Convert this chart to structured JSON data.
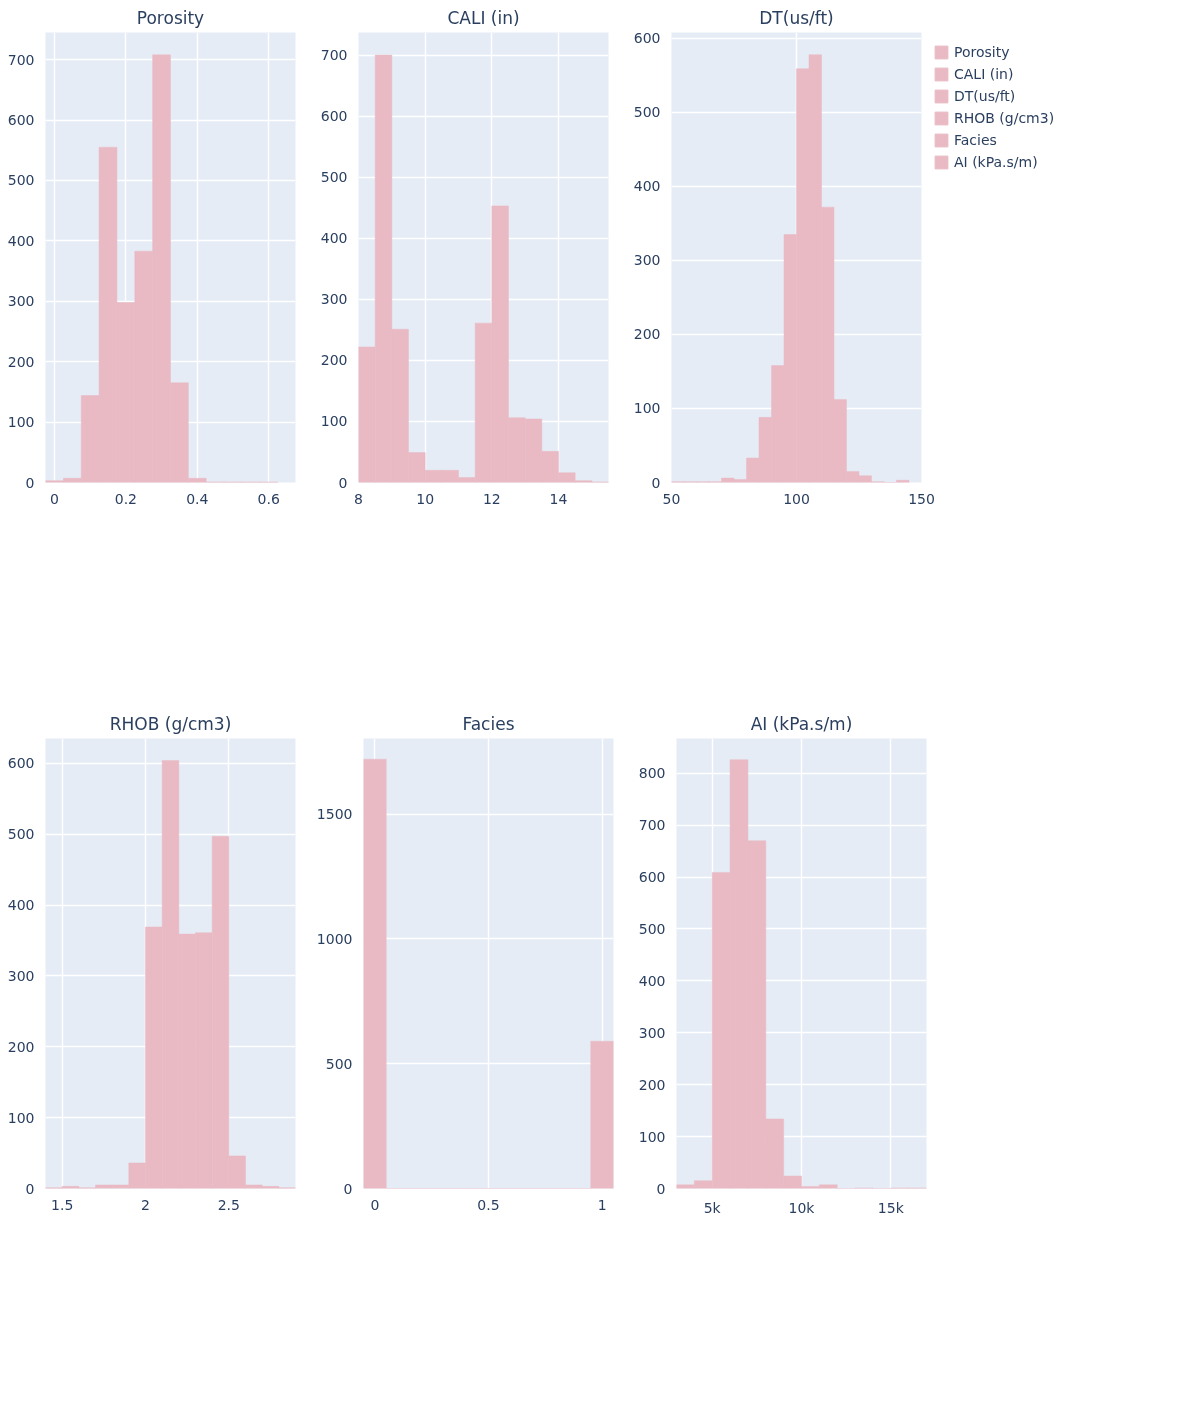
{
  "chart_data": [
    {
      "type": "histogram",
      "title": "Porosity",
      "bins": [
        -0.025,
        0.025,
        0.075,
        0.125,
        0.175,
        0.225,
        0.275,
        0.325,
        0.375,
        0.425,
        0.475,
        0.525,
        0.575,
        0.625
      ],
      "series": [
        {
          "name": "Porosity",
          "color": "#e9bac4",
          "values": [
            3,
            7,
            144,
            555,
            298,
            383,
            708,
            165,
            7,
            1,
            1,
            1,
            1
          ]
        }
      ],
      "xlim": [
        -0.025,
        0.675
      ],
      "ylim": [
        0,
        745
      ],
      "xticks": [
        0,
        0.2,
        0.4,
        0.6
      ],
      "yticks": [
        0,
        100,
        200,
        300,
        400,
        500,
        600,
        700
      ],
      "grid": true
    },
    {
      "type": "histogram",
      "title": "CALI (in)",
      "bins": [
        8,
        8.5,
        9,
        9.5,
        10,
        10.5,
        11,
        11.5,
        12,
        12.5,
        13,
        13.5,
        14,
        14.5,
        15,
        15.5
      ],
      "series": [
        {
          "name": "CALI (in)",
          "color": "#e9bac4",
          "values": [
            222,
            700,
            251,
            49,
            20,
            20,
            8,
            261,
            453,
            106,
            104,
            51,
            16,
            3,
            1
          ]
        }
      ],
      "xlim": [
        8,
        15.5
      ],
      "ylim": [
        0,
        737
      ],
      "xticks": [
        8,
        10,
        12,
        14
      ],
      "yticks": [
        0,
        100,
        200,
        300,
        400,
        500,
        600,
        700
      ],
      "grid": true
    },
    {
      "type": "histogram",
      "title": "DT(us/ft)",
      "bins": [
        50,
        55,
        60,
        65,
        70,
        75,
        80,
        85,
        90,
        95,
        100,
        105,
        110,
        115,
        120,
        125,
        130,
        135,
        140,
        145
      ],
      "series": [
        {
          "name": "DT(us/ft)",
          "color": "#e9bac4",
          "values": [
            1,
            1,
            1,
            1,
            6,
            4,
            33,
            88,
            158,
            335,
            559,
            578,
            372,
            112,
            15,
            9,
            1,
            0,
            3
          ]
        }
      ],
      "xlim": [
        50,
        150
      ],
      "ylim": [
        0,
        608
      ],
      "xticks": [
        50,
        100,
        150
      ],
      "yticks": [
        0,
        100,
        200,
        300,
        400,
        500,
        600
      ],
      "grid": true,
      "legend": "right"
    },
    {
      "type": "histogram",
      "title": "RHOB (g/cm3)",
      "bins": [
        1.4,
        1.5,
        1.6,
        1.7,
        1.8,
        1.9,
        2.0,
        2.1,
        2.2,
        2.3,
        2.4,
        2.5,
        2.6,
        2.7,
        2.8,
        2.9
      ],
      "series": [
        {
          "name": "RHOB (g/cm3)",
          "color": "#e9bac4",
          "values": [
            1,
            3,
            1,
            5,
            5,
            36,
            369,
            604,
            359,
            361,
            497,
            46,
            5,
            3,
            1
          ]
        }
      ],
      "xlim": [
        1.4,
        2.9
      ],
      "ylim": [
        0,
        635
      ],
      "xticks": [
        1.5,
        2,
        2.5
      ],
      "yticks": [
        0,
        100,
        200,
        300,
        400,
        500,
        600
      ],
      "grid": true
    },
    {
      "type": "histogram",
      "title": "Facies",
      "bins": [
        -0.05,
        0.05,
        0.15,
        0.25,
        0.35,
        0.45,
        0.55,
        0.65,
        0.75,
        0.85,
        0.95,
        1.05
      ],
      "series": [
        {
          "name": "Facies",
          "color": "#e9bac4",
          "values": [
            1720,
            0,
            0,
            0,
            0,
            0,
            0,
            0,
            0,
            0,
            590
          ]
        }
      ],
      "xlim": [
        -0.05,
        1.05
      ],
      "ylim": [
        0,
        1803
      ],
      "xticks": [
        0,
        0.5,
        1
      ],
      "yticks": [
        0,
        500,
        1000,
        1500
      ],
      "grid": true
    },
    {
      "type": "histogram",
      "title": "AI (kPa.s/m)",
      "bins": [
        3000,
        4000,
        5000,
        6000,
        7000,
        8000,
        9000,
        10000,
        11000,
        12000,
        13000,
        14000,
        15000,
        16000,
        17000
      ],
      "series": [
        {
          "name": "AI (kPa.s/m)",
          "color": "#e9bac4",
          "values": [
            7,
            15,
            609,
            826,
            670,
            134,
            24,
            4,
            7,
            0,
            1,
            0,
            1,
            1
          ]
        }
      ],
      "xlim": [
        3000,
        17000
      ],
      "ylim": [
        0,
        867
      ],
      "xticks": [
        {
          "value": 5000,
          "label": "5k"
        },
        {
          "value": 10000,
          "label": "10k"
        },
        {
          "value": 15000,
          "label": "15k"
        }
      ],
      "yticks": [
        0,
        100,
        200,
        300,
        400,
        500,
        600,
        700,
        800
      ],
      "grid": true
    }
  ]
}
